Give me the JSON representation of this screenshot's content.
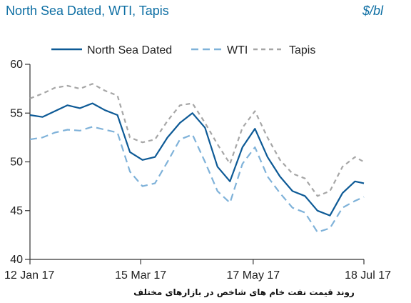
{
  "chart_data": {
    "type": "line",
    "title": "North Sea Dated, WTI, Tapis",
    "unit_label": "$/bl",
    "caption": "روند قیمت نفت خام های شاخص در بازارهای مختلف",
    "xlabel": "",
    "ylabel": "",
    "xlim": [
      "2017-01-12",
      "2017-07-18"
    ],
    "ylim": [
      40,
      60
    ],
    "yticks": [
      40,
      45,
      50,
      55,
      60
    ],
    "x_tick_labels": [
      {
        "date": "2017-01-12",
        "label": "12 Jan 17"
      },
      {
        "date": "2017-03-15",
        "label": "15 Mar 17"
      },
      {
        "date": "2017-05-17",
        "label": "17 May 17"
      },
      {
        "date": "2017-07-18",
        "label": "18 Jul 17"
      }
    ],
    "grid": false,
    "legend": "top",
    "x": [
      "2017-01-12",
      "2017-01-19",
      "2017-01-26",
      "2017-02-02",
      "2017-02-09",
      "2017-02-16",
      "2017-02-23",
      "2017-03-02",
      "2017-03-09",
      "2017-03-16",
      "2017-03-23",
      "2017-03-30",
      "2017-04-06",
      "2017-04-13",
      "2017-04-20",
      "2017-04-27",
      "2017-05-04",
      "2017-05-11",
      "2017-05-18",
      "2017-05-25",
      "2017-06-01",
      "2017-06-08",
      "2017-06-15",
      "2017-06-22",
      "2017-06-29",
      "2017-07-06",
      "2017-07-13",
      "2017-07-18"
    ],
    "series": [
      {
        "name": "North Sea Dated",
        "color": "#0d5a96",
        "dash": "solid",
        "values": [
          54.8,
          54.6,
          55.2,
          55.8,
          55.5,
          56.0,
          55.3,
          54.8,
          51.0,
          50.2,
          50.5,
          52.5,
          54.0,
          55.0,
          53.5,
          49.5,
          48.0,
          51.5,
          53.4,
          50.5,
          48.5,
          47.0,
          46.5,
          45.0,
          44.5,
          46.8,
          48.0,
          47.8
        ]
      },
      {
        "name": "WTI",
        "color": "#7fb2d9",
        "dash": "dashed",
        "values": [
          52.3,
          52.5,
          53.0,
          53.3,
          53.2,
          53.6,
          53.3,
          53.0,
          49.0,
          47.5,
          47.8,
          50.0,
          52.3,
          52.8,
          50.0,
          47.0,
          45.8,
          49.8,
          51.5,
          48.5,
          46.8,
          45.3,
          44.8,
          42.8,
          43.2,
          45.3,
          46.0,
          46.4
        ]
      },
      {
        "name": "Tapis",
        "color": "#a6a6a6",
        "dash": "dashed",
        "values": [
          56.5,
          57.0,
          57.6,
          57.8,
          57.5,
          58.0,
          57.3,
          56.8,
          52.5,
          52.0,
          52.3,
          54.2,
          55.8,
          56.0,
          54.0,
          51.8,
          49.8,
          53.5,
          55.2,
          52.5,
          50.2,
          48.8,
          48.3,
          46.5,
          47.0,
          49.5,
          50.5,
          50.0
        ]
      }
    ]
  }
}
